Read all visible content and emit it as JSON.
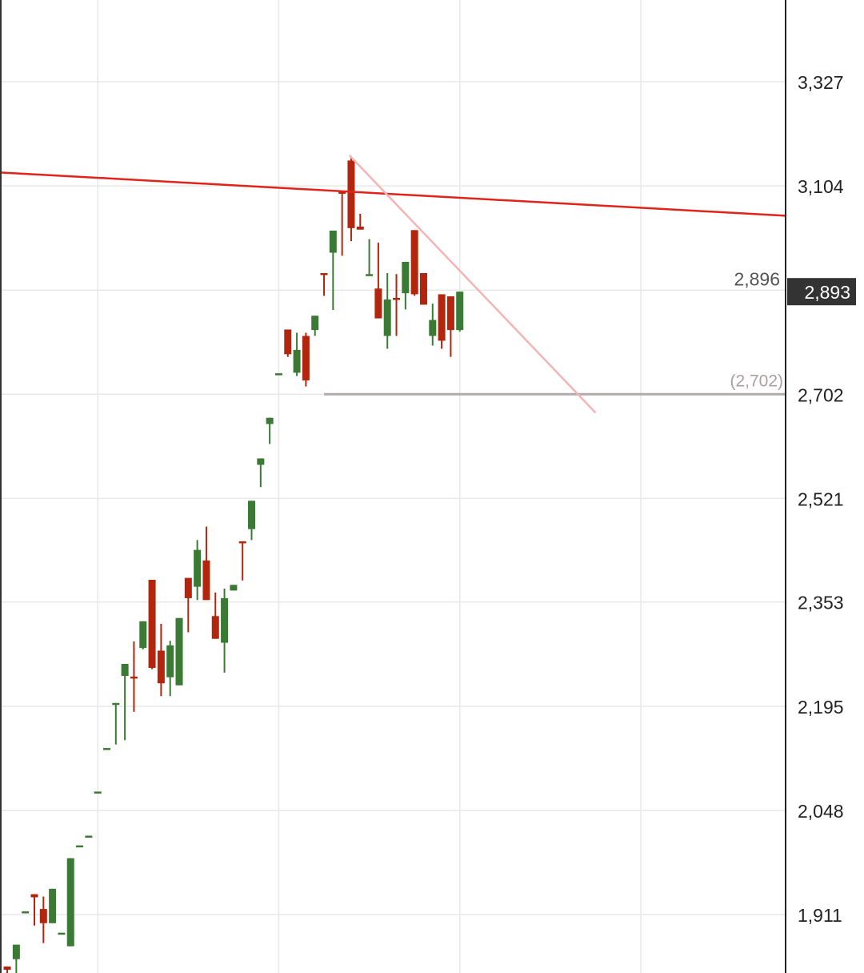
{
  "chart_data": {
    "type": "candlestick",
    "title": "",
    "xlabel": "",
    "ylabel": "",
    "y_scale": "log",
    "ylim": [
      1838,
      3513
    ],
    "xlim": [
      -0.8,
      86
    ],
    "grid": true,
    "x_grid_at": [
      10,
      30,
      50,
      70
    ],
    "y_ticks": [
      {
        "value": 3327,
        "label": "3,327"
      },
      {
        "value": 3104,
        "label": "3,104"
      },
      {
        "value": 2896,
        "label": "2,896"
      },
      {
        "value": 2702,
        "label": "2,702"
      },
      {
        "value": 2521,
        "label": "2,521"
      },
      {
        "value": 2353,
        "label": "2,353"
      },
      {
        "value": 2195,
        "label": "2,195"
      },
      {
        "value": 2048,
        "label": "2,048"
      },
      {
        "value": 1911,
        "label": "1,911"
      }
    ],
    "current_price": {
      "value": 2893,
      "label": "2,893",
      "color": "#333333"
    },
    "colors": {
      "up": "#3b7a35",
      "down": "#b3250c",
      "grid": "#e8e8e8",
      "axis": "#222222"
    },
    "candles": [
      [
        1846,
        1846,
        1837,
        1842
      ],
      [
        1855,
        1873,
        1837,
        1873
      ],
      [
        1915,
        1915,
        1915,
        1915
      ],
      [
        1937,
        1937,
        1897,
        1933
      ],
      [
        1918,
        1934,
        1875,
        1900
      ],
      [
        1900,
        1944,
        1900,
        1944
      ],
      [
        1888,
        1888,
        1888,
        1888
      ],
      [
        1871,
        1984,
        1871,
        1984
      ],
      [
        2001,
        2001,
        2001,
        2001
      ],
      [
        2014,
        2014,
        2014,
        2014
      ],
      [
        2074,
        2074,
        2074,
        2074
      ],
      [
        2135,
        2135,
        2135,
        2135
      ],
      [
        2198,
        2200,
        2140,
        2200
      ],
      [
        2240,
        2258,
        2146,
        2258
      ],
      [
        2239,
        2292,
        2187,
        2236
      ],
      [
        2282,
        2323,
        2280,
        2323
      ],
      [
        2388,
        2388,
        2250,
        2252
      ],
      [
        2278,
        2319,
        2210,
        2229
      ],
      [
        2238,
        2293,
        2210,
        2286
      ],
      [
        2226,
        2328,
        2226,
        2328
      ],
      [
        2391,
        2391,
        2306,
        2359
      ],
      [
        2377,
        2452,
        2356,
        2436
      ],
      [
        2419,
        2474,
        2356,
        2356
      ],
      [
        2331,
        2368,
        2296,
        2296
      ],
      [
        2290,
        2374,
        2245,
        2359
      ],
      [
        2371,
        2380,
        2371,
        2380
      ],
      [
        2450,
        2450,
        2387,
        2447
      ],
      [
        2470,
        2517,
        2452,
        2517
      ],
      [
        2578,
        2589,
        2540,
        2589
      ],
      [
        2649,
        2660,
        2614,
        2660
      ],
      [
        2740,
        2740,
        2740,
        2740
      ],
      [
        2821,
        2821,
        2770,
        2775
      ],
      [
        2741,
        2815,
        2735,
        2783
      ],
      [
        2809,
        2815,
        2716,
        2727
      ],
      [
        2820,
        2847,
        2809,
        2847
      ],
      [
        2929,
        2929,
        2885,
        2926
      ],
      [
        2969,
        3013,
        2858,
        3013
      ],
      [
        3092,
        3092,
        2963,
        3089
      ],
      [
        3157,
        3166,
        2992,
        3018
      ],
      [
        3021,
        3047,
        3015,
        3015
      ],
      [
        2924,
        2996,
        2924,
        2927
      ],
      [
        2899,
        2989,
        2842,
        2842
      ],
      [
        2809,
        2929,
        2785,
        2878
      ],
      [
        2881,
        2927,
        2809,
        2878
      ],
      [
        2890,
        2951,
        2859,
        2951
      ],
      [
        3014,
        3014,
        2885,
        2888
      ],
      [
        2929,
        2929,
        2868,
        2868
      ],
      [
        2809,
        2870,
        2791,
        2839
      ],
      [
        2888,
        2888,
        2785,
        2800
      ],
      [
        2884,
        2884,
        2770,
        2820
      ],
      [
        2820,
        2893,
        2817,
        2893
      ]
    ],
    "candle_fields": [
      "open",
      "high",
      "low",
      "close"
    ],
    "annotations": [
      {
        "kind": "trendline",
        "color": "#e0231b",
        "from": [
          -0.8,
          3132
        ],
        "to": [
          86,
          3043
        ]
      },
      {
        "kind": "trendline",
        "color": "#f4b4b4",
        "from": [
          37.8,
          3168
        ],
        "to": [
          65,
          2669
        ]
      },
      {
        "kind": "horizontal",
        "color": "#b3aaaa",
        "value": 2702,
        "from_x": 35,
        "label": "(2,702)"
      }
    ]
  }
}
